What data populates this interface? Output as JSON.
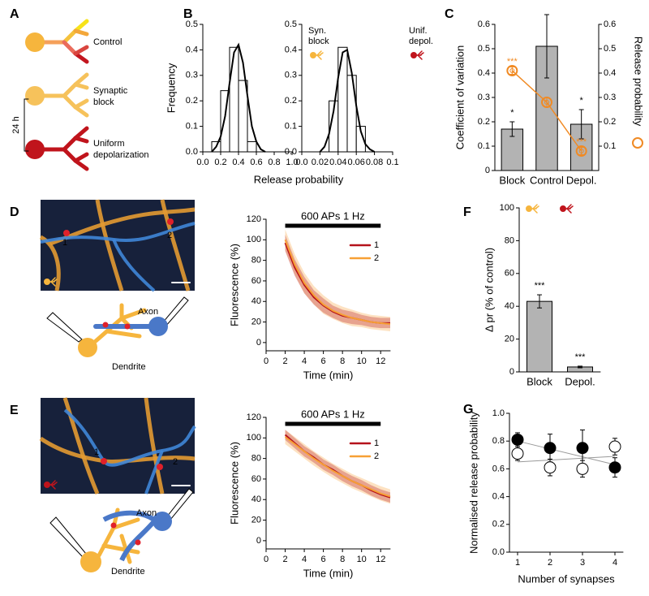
{
  "figure": {
    "letters": [
      "A",
      "B",
      "C",
      "D",
      "E",
      "F",
      "G"
    ],
    "panel_a": {
      "conditions": [
        [
          "Control"
        ],
        [
          "Synaptic",
          "block"
        ],
        [
          "Uniform",
          "depolarization"
        ]
      ],
      "duration": "24 h"
    },
    "panel_d": {
      "synapses": [
        "1",
        "2"
      ],
      "axon": "Axon",
      "dendrite": "Dendrite"
    },
    "panel_e": {
      "synapses": [
        "1",
        "2"
      ],
      "axon": "Axon",
      "dendrite": "Dendrite"
    }
  },
  "chart_data": [
    {
      "type": "histogram",
      "ylabel": "Frequency",
      "xlabel": "Release probability",
      "annotation": [
        "Syn.",
        "block"
      ],
      "color": "#ffffff",
      "bins": [
        0.1,
        0.2,
        0.3,
        0.4,
        0.5,
        0.6
      ],
      "values": [
        0.04,
        0.24,
        0.41,
        0.28,
        0.04
      ],
      "fit": {
        "x": [
          0.1,
          0.15,
          0.2,
          0.25,
          0.3,
          0.35,
          0.4,
          0.45,
          0.5,
          0.55,
          0.6,
          0.65,
          0.7
        ],
        "values": [
          0.0,
          0.02,
          0.06,
          0.14,
          0.27,
          0.39,
          0.42,
          0.35,
          0.22,
          0.1,
          0.04,
          0.01,
          0.0
        ]
      },
      "xlim": [
        0,
        1
      ],
      "ylim": [
        0,
        0.5
      ],
      "xticks": [
        {
          "value": 0,
          "label": "0.0"
        },
        0.2,
        0.4,
        0.6,
        0.8,
        {
          "value": 1,
          "label": "1.0"
        }
      ],
      "yticks": [
        {
          "value": 0,
          "label": "0.0"
        },
        0.1,
        0.2,
        0.3,
        0.4,
        0.5
      ]
    },
    {
      "type": "histogram",
      "annotation": [
        "Unif.",
        "depol."
      ],
      "color": "#ffffff",
      "bins": [
        0.03,
        0.04,
        0.05,
        0.06,
        0.07
      ],
      "values": [
        0.2,
        0.41,
        0.3,
        0.1
      ],
      "fit": {
        "x": [
          0.02,
          0.025,
          0.03,
          0.035,
          0.04,
          0.045,
          0.05,
          0.055,
          0.06,
          0.065,
          0.07,
          0.075,
          0.08
        ],
        "values": [
          0.0,
          0.02,
          0.07,
          0.16,
          0.29,
          0.39,
          0.4,
          0.31,
          0.18,
          0.08,
          0.03,
          0.01,
          0.0
        ]
      },
      "xlim": [
        0,
        0.1
      ],
      "ylim": [
        0,
        0.5
      ],
      "xticks": [
        {
          "value": 0,
          "label": "0.0"
        },
        0.02,
        0.04,
        0.06,
        0.08,
        0.1
      ],
      "yticks": [
        {
          "value": 0,
          "label": "0.0"
        },
        0.1,
        0.2,
        0.3,
        0.4,
        0.5
      ]
    },
    {
      "type": "bar",
      "categories": [
        "Block",
        "Control",
        "Depol."
      ],
      "ylabel": "Coefficient of variation",
      "y2label": "Release probability",
      "ylim": [
        0,
        0.6
      ],
      "yticks": [
        0,
        0.1,
        0.2,
        0.3,
        0.4,
        0.5,
        0.6
      ],
      "y2lim": [
        0,
        0.6
      ],
      "y2ticks": [
        0.1,
        0.2,
        0.3,
        0.4,
        0.5,
        0.6
      ],
      "series": [
        {
          "color": "#b3b3b3",
          "values": [
            0.17,
            0.51,
            0.19
          ],
          "errors": [
            0.03,
            0.13,
            0.06
          ],
          "annotations": [
            "*",
            null,
            "*"
          ]
        },
        {
          "axis": "y2",
          "color": "#f08a24",
          "values": [
            0.41,
            0.28,
            0.08
          ],
          "errors": [
            0.015,
            0.02,
            0.015
          ],
          "annotations": [
            "***",
            null,
            "***"
          ]
        }
      ]
    },
    {
      "type": "line",
      "xlabel": "Time (min)",
      "ylabel": "Fluorescence (%)",
      "stimulus": {
        "label": "600 APs 1 Hz",
        "x": [
          2,
          12
        ]
      },
      "x": [
        2,
        3,
        4,
        5,
        6,
        7,
        8,
        9,
        10,
        11,
        12,
        13
      ],
      "series": [
        {
          "name": "1",
          "color": "#b5121b",
          "values": [
            97,
            73,
            56,
            44,
            36,
            30,
            26,
            24,
            22,
            20,
            19,
            19
          ],
          "errors": [
            8,
            8,
            8,
            7,
            7,
            6,
            6,
            6,
            5,
            5,
            5,
            5
          ]
        },
        {
          "name": "2",
          "color": "#f7a035",
          "values": [
            100,
            76,
            58,
            46,
            37,
            31,
            27,
            24,
            22,
            20,
            19,
            18
          ],
          "errors": [
            10,
            10,
            10,
            9,
            9,
            8,
            8,
            8,
            7,
            7,
            7,
            7
          ]
        }
      ],
      "xlim": [
        0,
        13
      ],
      "ylim": [
        -8,
        120
      ],
      "xticks": [
        0,
        2,
        4,
        6,
        8,
        10,
        12
      ],
      "yticks": [
        0,
        20,
        40,
        60,
        80,
        100,
        120
      ]
    },
    {
      "type": "line",
      "xlabel": "Time (min)",
      "ylabel": "Fluorescence (%)",
      "stimulus": {
        "label": "600 APs 1 Hz",
        "x": [
          2,
          12
        ]
      },
      "x": [
        2,
        3,
        4,
        5,
        6,
        7,
        8,
        9,
        10,
        11,
        12,
        13
      ],
      "series": [
        {
          "name": "1",
          "color": "#b5121b",
          "values": [
            103,
            95,
            87,
            81,
            74,
            69,
            63,
            58,
            54,
            49,
            45,
            42
          ],
          "errors": [
            5,
            5,
            5,
            5,
            5,
            5,
            5,
            5,
            5,
            5,
            5,
            5
          ]
        },
        {
          "name": "2",
          "color": "#f7a035",
          "values": [
            101,
            94,
            87,
            80,
            74,
            68,
            63,
            58,
            54,
            50,
            46,
            43
          ],
          "errors": [
            7,
            7,
            7,
            7,
            7,
            7,
            7,
            7,
            7,
            7,
            7,
            7
          ]
        }
      ],
      "xlim": [
        0,
        13
      ],
      "ylim": [
        -8,
        120
      ],
      "xticks": [
        0,
        2,
        4,
        6,
        8,
        10,
        12
      ],
      "yticks": [
        0,
        20,
        40,
        60,
        80,
        100,
        120
      ]
    },
    {
      "type": "bar",
      "categories": [
        "Block",
        "Depol."
      ],
      "ylabel": "Δ pr (% of control)",
      "ylim": [
        0,
        100
      ],
      "yticks": [
        0,
        20,
        40,
        60,
        80,
        100
      ],
      "series": [
        {
          "color": "#b3b3b3",
          "values": [
            43,
            3
          ],
          "errors": [
            4,
            0.5
          ],
          "annotations": [
            "***",
            "***"
          ]
        }
      ]
    },
    {
      "type": "scatter",
      "xlabel": "Number of synapses",
      "ylabel": "Normalised release probability",
      "x": [
        1,
        2,
        3,
        4
      ],
      "fit_x": [
        1,
        4
      ],
      "fit_color": "#999999",
      "series": [
        {
          "color": "#000000",
          "values": [
            0.81,
            0.75,
            0.75,
            0.61
          ],
          "errors": [
            0.05,
            0.1,
            0.13,
            0.07
          ],
          "fit": [
            0.8,
            0.63
          ]
        },
        {
          "color": "#ffffff",
          "values": [
            0.71,
            0.61,
            0.6,
            0.76
          ],
          "errors": [
            0.05,
            0.06,
            0.06,
            0.06
          ],
          "fit": [
            0.65,
            0.69
          ]
        }
      ],
      "xlim": [
        0.75,
        4.25
      ],
      "ylim": [
        0,
        1
      ],
      "xticks": [
        1,
        2,
        3,
        4
      ],
      "yticks": [
        {
          "value": 0,
          "label": "0.0"
        },
        0.2,
        0.4,
        0.6,
        0.8,
        {
          "value": 1,
          "label": "1.0"
        }
      ]
    }
  ]
}
